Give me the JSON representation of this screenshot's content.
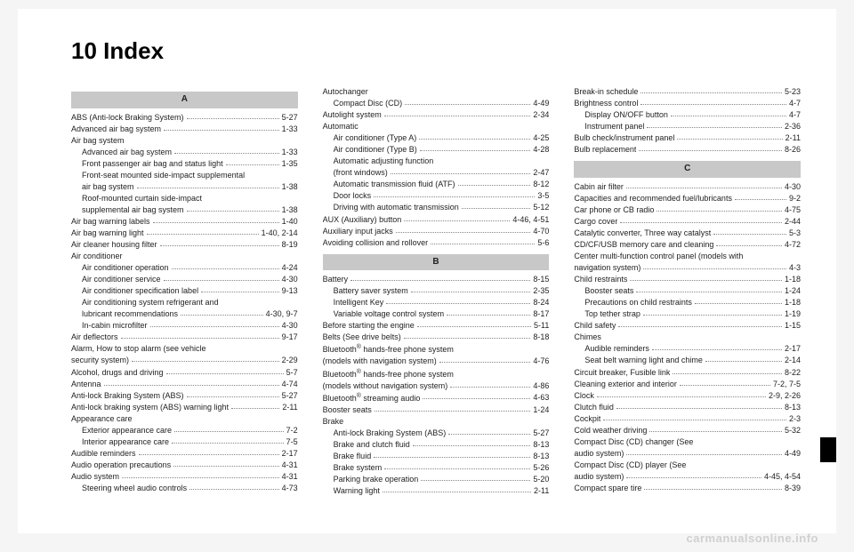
{
  "title": "10 Index",
  "watermark": "carmanualsonline.info",
  "columns": [
    {
      "sections": [
        {
          "head": "A",
          "items": [
            {
              "label": "ABS (Anti-lock Braking System)",
              "page": "5-27"
            },
            {
              "label": "Advanced air bag system",
              "page": "1-33"
            },
            {
              "label": "Air bag system"
            },
            {
              "label": "Advanced air bag system",
              "page": "1-33",
              "indent": true
            },
            {
              "label": "Front passenger air bag and status light",
              "page": "1-35",
              "indent": true
            },
            {
              "label": "Front-seat mounted side-impact supplemental",
              "indent": true
            },
            {
              "label": "air bag system",
              "page": "1-38",
              "indent": true
            },
            {
              "label": "Roof-mounted curtain side-impact",
              "indent": true
            },
            {
              "label": "supplemental air bag system",
              "page": "1-38",
              "indent": true
            },
            {
              "label": "Air bag warning labels",
              "page": "1-40"
            },
            {
              "label": "Air bag warning light",
              "page": "1-40, 2-14"
            },
            {
              "label": "Air cleaner housing filter",
              "page": "8-19"
            },
            {
              "label": "Air conditioner"
            },
            {
              "label": "Air conditioner operation",
              "page": "4-24",
              "indent": true
            },
            {
              "label": "Air conditioner service",
              "page": "4-30",
              "indent": true
            },
            {
              "label": "Air conditioner specification label",
              "page": "9-13",
              "indent": true
            },
            {
              "label": "Air conditioning system refrigerant and",
              "indent": true
            },
            {
              "label": "lubricant recommendations",
              "page": "4-30, 9-7",
              "indent": true
            },
            {
              "label": "In-cabin microfilter",
              "page": "4-30",
              "indent": true
            },
            {
              "label": "Air deflectors",
              "page": "9-17"
            },
            {
              "label": "Alarm, How to stop alarm (see vehicle"
            },
            {
              "label": "security system)",
              "page": "2-29"
            },
            {
              "label": "Alcohol, drugs and driving",
              "page": "5-7"
            },
            {
              "label": "Antenna",
              "page": "4-74"
            },
            {
              "label": "Anti-lock Braking System (ABS)",
              "page": "5-27"
            },
            {
              "label": "Anti-lock braking system (ABS) warning light",
              "page": "2-11"
            },
            {
              "label": "Appearance care"
            },
            {
              "label": "Exterior appearance care",
              "page": "7-2",
              "indent": true
            },
            {
              "label": "Interior appearance care",
              "page": "7-5",
              "indent": true
            },
            {
              "label": "Audible reminders",
              "page": "2-17"
            },
            {
              "label": "Audio operation precautions",
              "page": "4-31"
            },
            {
              "label": "Audio system",
              "page": "4-31"
            },
            {
              "label": "Steering wheel audio controls",
              "page": "4-73",
              "indent": true
            }
          ]
        }
      ]
    },
    {
      "sections": [
        {
          "items": [
            {
              "label": "Autochanger"
            },
            {
              "label": "Compact Disc (CD)",
              "page": "4-49",
              "indent": true
            },
            {
              "label": "Autolight system",
              "page": "2-34"
            },
            {
              "label": "Automatic"
            },
            {
              "label": "Air conditioner (Type A)",
              "page": "4-25",
              "indent": true
            },
            {
              "label": "Air conditioner (Type B)",
              "page": "4-28",
              "indent": true
            },
            {
              "label": "Automatic adjusting function",
              "indent": true
            },
            {
              "label": "(front windows)",
              "page": "2-47",
              "indent": true
            },
            {
              "label": "Automatic transmission fluid (ATF)",
              "page": "8-12",
              "indent": true
            },
            {
              "label": "Door locks",
              "page": "3-5",
              "indent": true
            },
            {
              "label": "Driving with automatic transmission",
              "page": "5-12",
              "indent": true
            },
            {
              "label": "AUX (Auxiliary) button",
              "page": "4-46, 4-51"
            },
            {
              "label": "Auxiliary input jacks",
              "page": "4-70"
            },
            {
              "label": "Avoiding collision and rollover",
              "page": "5-6"
            }
          ]
        },
        {
          "head": "B",
          "items": [
            {
              "label": "Battery",
              "page": "8-15"
            },
            {
              "label": "Battery saver system",
              "page": "2-35",
              "indent": true
            },
            {
              "label": "Intelligent Key",
              "page": "8-24",
              "indent": true
            },
            {
              "label": "Variable voltage control system",
              "page": "8-17",
              "indent": true
            },
            {
              "label": "Before starting the engine",
              "page": "5-11"
            },
            {
              "label": "Belts (See drive belts)",
              "page": "8-18"
            },
            {
              "label": "Bluetooth",
              "sup": "®",
              "tail": " hands-free phone system"
            },
            {
              "label": "(models with navigation system)",
              "page": "4-76"
            },
            {
              "label": "Bluetooth",
              "sup": "®",
              "tail": " hands-free phone system"
            },
            {
              "label": "(models without navigation system)",
              "page": "4-86"
            },
            {
              "label": "Bluetooth",
              "sup": "®",
              "tail": " streaming audio",
              "page": "4-63"
            },
            {
              "label": "Booster seats",
              "page": "1-24"
            },
            {
              "label": "Brake"
            },
            {
              "label": "Anti-lock Braking System (ABS)",
              "page": "5-27",
              "indent": true
            },
            {
              "label": "Brake and clutch fluid",
              "page": "8-13",
              "indent": true
            },
            {
              "label": "Brake fluid",
              "page": "8-13",
              "indent": true
            },
            {
              "label": "Brake system",
              "page": "5-26",
              "indent": true
            },
            {
              "label": "Parking brake operation",
              "page": "5-20",
              "indent": true
            },
            {
              "label": "Warning light",
              "page": "2-11",
              "indent": true
            }
          ]
        }
      ]
    },
    {
      "sections": [
        {
          "items": [
            {
              "label": "Break-in schedule",
              "page": "5-23"
            },
            {
              "label": "Brightness control",
              "page": "4-7"
            },
            {
              "label": "Display ON/OFF button",
              "page": "4-7",
              "indent": true
            },
            {
              "label": "Instrument panel",
              "page": "2-36",
              "indent": true
            },
            {
              "label": "Bulb check/instrument panel",
              "page": "2-11"
            },
            {
              "label": "Bulb replacement",
              "page": "8-26"
            }
          ]
        },
        {
          "head": "C",
          "items": [
            {
              "label": "Cabin air filter",
              "page": "4-30"
            },
            {
              "label": "Capacities and recommended fuel/lubricants",
              "page": "9-2"
            },
            {
              "label": "Car phone or CB radio",
              "page": "4-75"
            },
            {
              "label": "Cargo cover",
              "page": "2-44"
            },
            {
              "label": "Catalytic converter, Three way catalyst",
              "page": "5-3"
            },
            {
              "label": "CD/CF/USB memory care and cleaning",
              "page": "4-72"
            },
            {
              "label": "Center multi-function control panel (models with"
            },
            {
              "label": "navigation system)",
              "page": "4-3"
            },
            {
              "label": "Child restraints",
              "page": "1-18"
            },
            {
              "label": "Booster seats",
              "page": "1-24",
              "indent": true
            },
            {
              "label": "Precautions on child restraints",
              "page": "1-18",
              "indent": true
            },
            {
              "label": "Top tether strap",
              "page": "1-19",
              "indent": true
            },
            {
              "label": "Child safety",
              "page": "1-15"
            },
            {
              "label": "Chimes"
            },
            {
              "label": "Audible reminders",
              "page": "2-17",
              "indent": true
            },
            {
              "label": "Seat belt warning light and chime",
              "page": "2-14",
              "indent": true
            },
            {
              "label": "Circuit breaker, Fusible link",
              "page": "8-22"
            },
            {
              "label": "Cleaning exterior and interior",
              "page": "7-2, 7-5"
            },
            {
              "label": "Clock",
              "page": "2-9, 2-26"
            },
            {
              "label": "Clutch fluid",
              "page": "8-13"
            },
            {
              "label": "Cockpit",
              "page": "2-3"
            },
            {
              "label": "Cold weather driving",
              "page": "5-32"
            },
            {
              "label": "Compact Disc (CD) changer (See"
            },
            {
              "label": "audio system)",
              "page": "4-49"
            },
            {
              "label": "Compact Disc (CD) player (See"
            },
            {
              "label": "audio system)",
              "page": "4-45, 4-54"
            },
            {
              "label": "Compact spare tire",
              "page": "8-39"
            }
          ]
        }
      ]
    }
  ]
}
